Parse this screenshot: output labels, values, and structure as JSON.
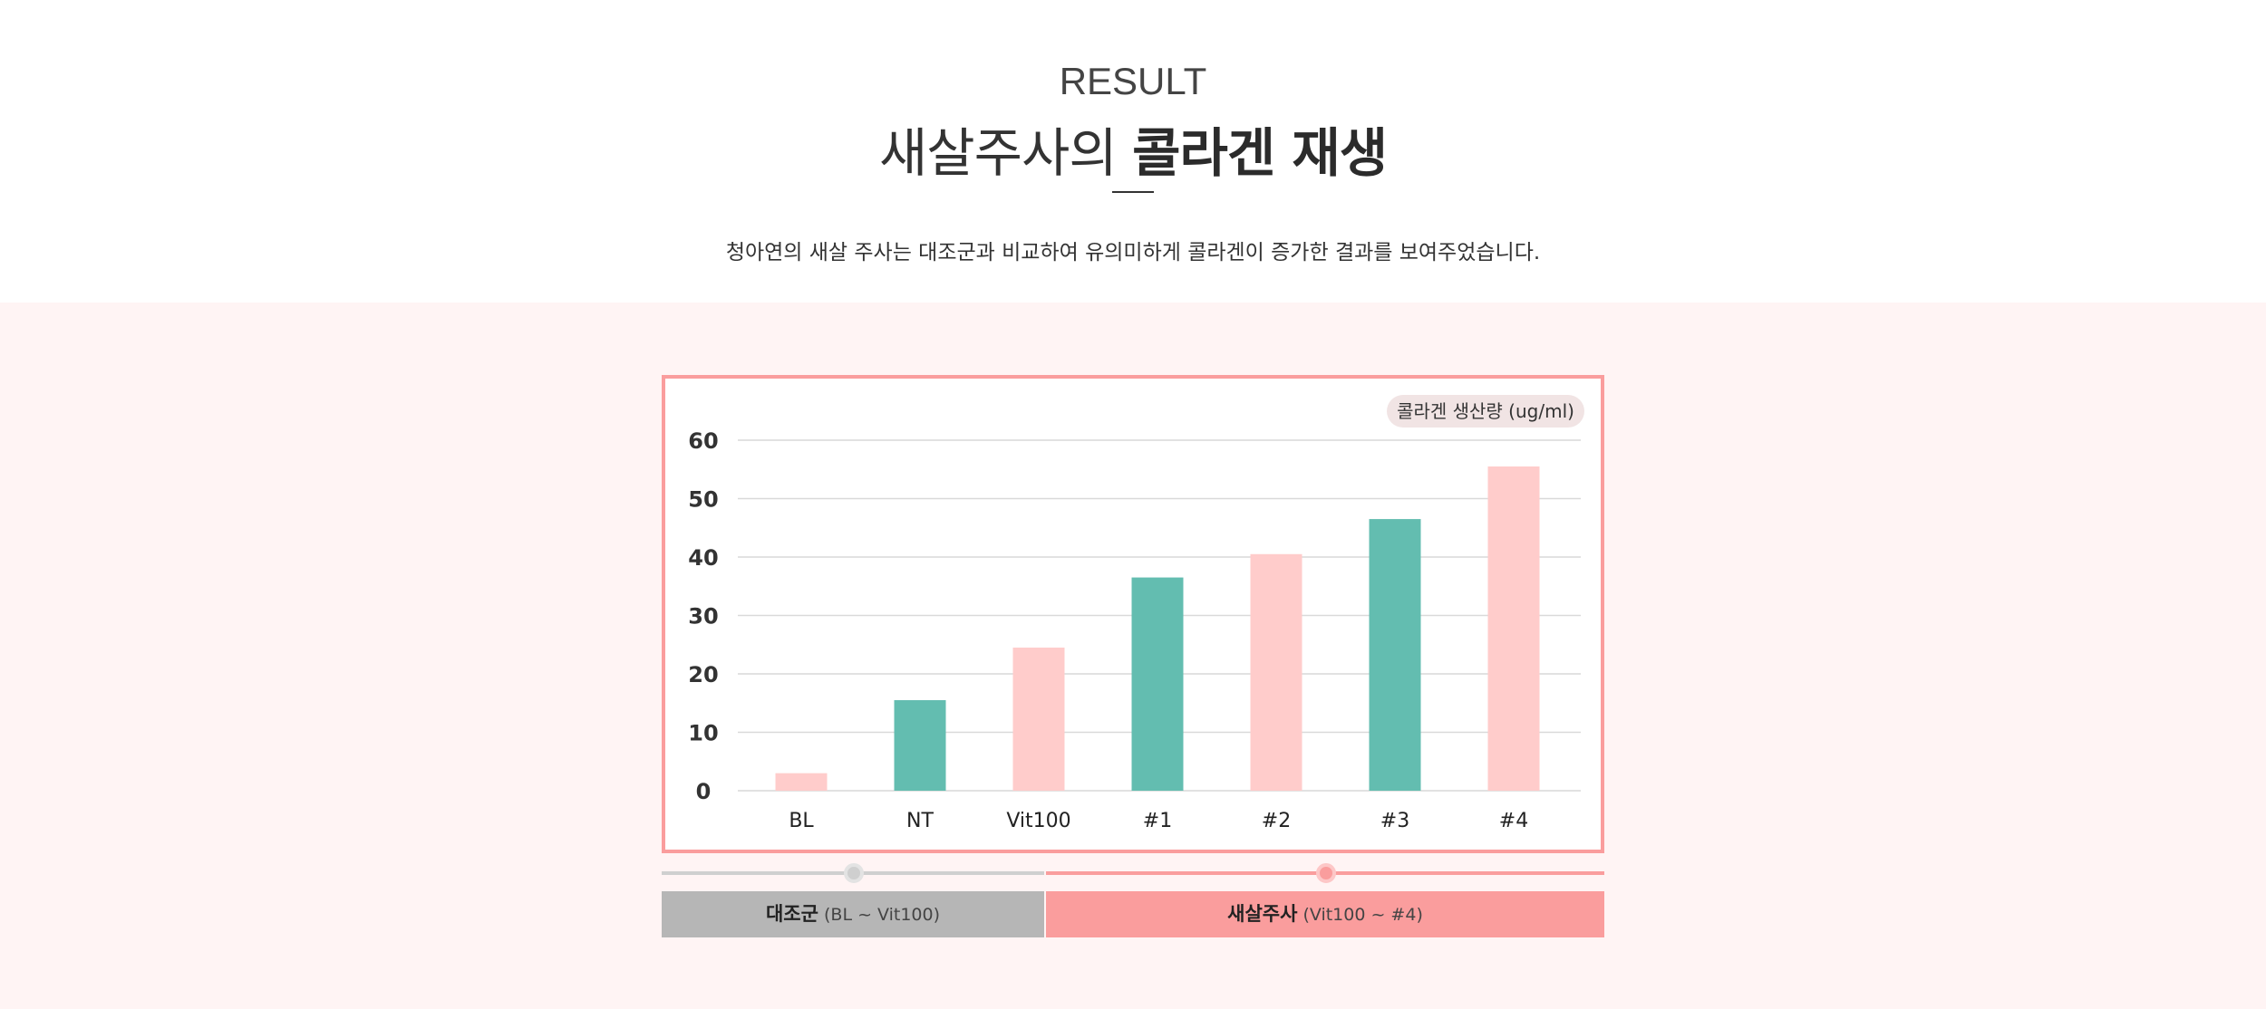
{
  "header": {
    "eyebrow": "RESULT",
    "title_light": "새살주사의 ",
    "title_bold": "콜라겐 재생",
    "description": "청아연의 새살 주사는 대조군과 비교하여 유의미하게 콜라겐이 증가한 결과를 보여주었습니다."
  },
  "chart_data": {
    "type": "bar",
    "categories": [
      "BL",
      "NT",
      "Vit100",
      "#1",
      "#2",
      "#3",
      "#4"
    ],
    "values": [
      3,
      15.5,
      24.5,
      36.5,
      40.5,
      46.5,
      55.5
    ],
    "bar_colors": [
      "#ffcccb",
      "#63bdb0",
      "#ffcccb",
      "#63bdb0",
      "#ffcccb",
      "#63bdb0",
      "#ffcccb"
    ],
    "ylabel": "콜라겐 생산량 (ug/ml)",
    "ylim": [
      0,
      60
    ],
    "yticks": [
      0,
      10,
      20,
      30,
      40,
      50,
      60
    ],
    "grid": true
  },
  "groups": {
    "control": {
      "label": "대조군",
      "range": " (BL ~ Vit100)",
      "color": "#b6b6b6"
    },
    "treatment": {
      "label": "새살주사",
      "range": " (Vit100 ~ #4)",
      "color": "#fa9d9d"
    }
  },
  "colors": {
    "accent": "#fa9d9d",
    "teal": "#63bdb0",
    "pink": "#ffcccb",
    "background_band": "#fff4f4"
  }
}
